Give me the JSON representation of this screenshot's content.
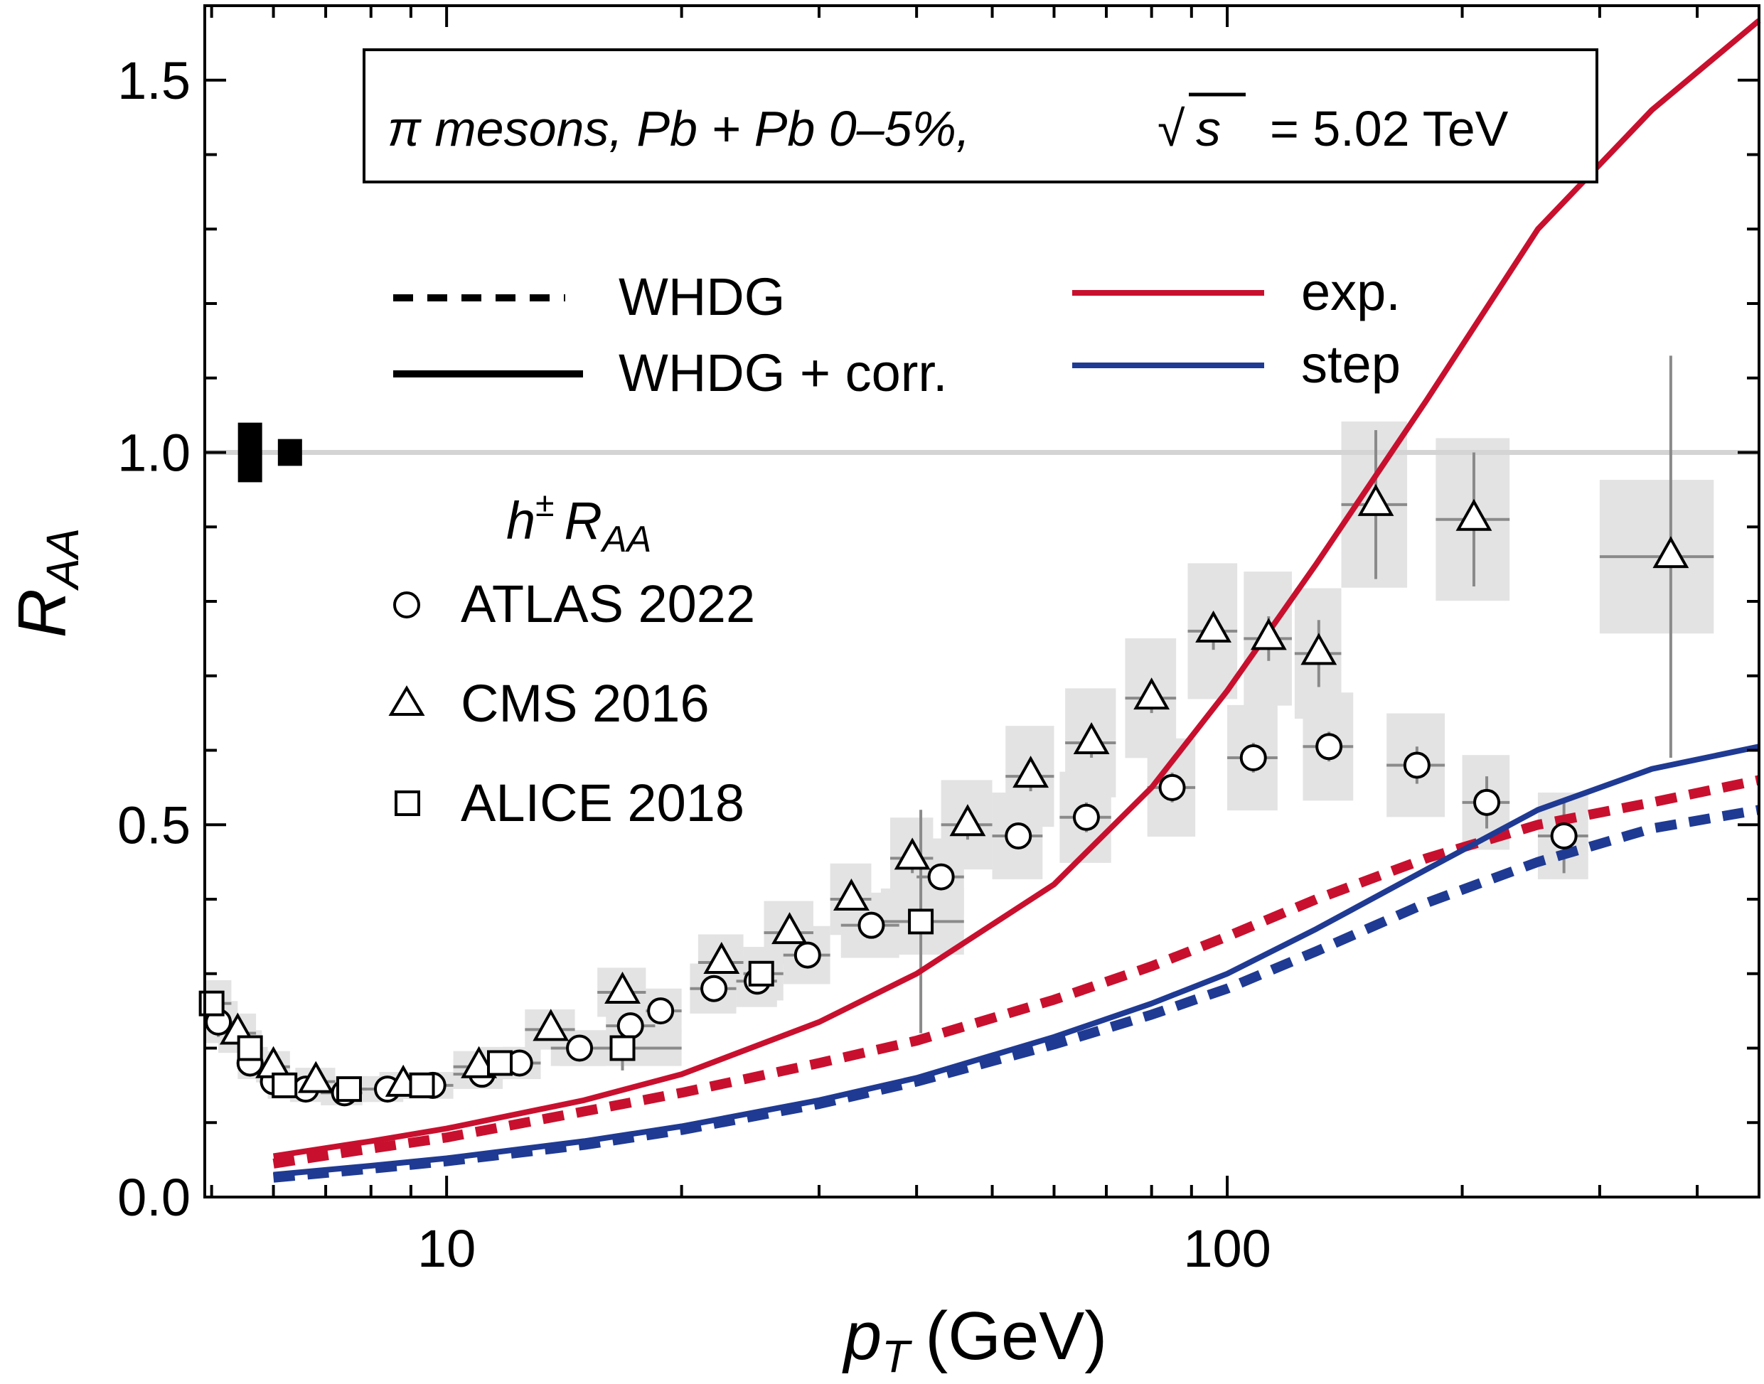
{
  "chart_data": {
    "type": "line",
    "x_scale": "log",
    "xlim": [
      4.9,
      480
    ],
    "ylim": [
      0.0,
      1.6
    ],
    "grid": false,
    "reference_line_y": 1.0,
    "xlabel_main": "p",
    "xlabel_sub": "T",
    "xlabel_unit": "(GeV)",
    "ylabel_main": "R",
    "ylabel_sub": "AA",
    "x_tick_labels": [
      {
        "v": 10,
        "text": "10"
      },
      {
        "v": 100,
        "text": "100"
      }
    ],
    "y_tick_labels": [
      {
        "v": 0.0,
        "text": "0.0"
      },
      {
        "v": 0.5,
        "text": "0.5"
      },
      {
        "v": 1.0,
        "text": "1.0"
      },
      {
        "v": 1.5,
        "text": "1.5"
      }
    ],
    "annotation": {
      "prefix": "π mesons, Pb + Pb 0–5%,",
      "sqrt_symbol": "√",
      "sqrt_arg": "s",
      "suffix": "= 5.02 TeV"
    },
    "legend_styles": [
      {
        "name": "WHDG",
        "dash": true
      },
      {
        "name": "WHDG + corr.",
        "dash": false
      }
    ],
    "legend_colors": [
      {
        "name": "exp.",
        "color": "#c8102e"
      },
      {
        "name": "step",
        "color": "#1f3a93"
      }
    ],
    "legend_data_title": {
      "main": "h",
      "sup": "±",
      "r": "R",
      "sub": "AA"
    },
    "legend_markers": [
      {
        "name": "ATLAS 2022",
        "marker": "circle"
      },
      {
        "name": "CMS 2016",
        "marker": "triangle"
      },
      {
        "name": "ALICE 2018",
        "marker": "square"
      }
    ],
    "normalization_boxes": [
      {
        "x": 5.6,
        "y": 1.0,
        "half_height": 0.04
      },
      {
        "x": 6.3,
        "y": 1.0,
        "half_height": 0.018
      }
    ],
    "series": [
      {
        "name": "exp. WHDG + corr.",
        "color": "#c8102e",
        "dash": false,
        "x": [
          6,
          8,
          10,
          15,
          20,
          30,
          40,
          60,
          80,
          100,
          130,
          180,
          250,
          350,
          480
        ],
        "y": [
          0.055,
          0.075,
          0.092,
          0.13,
          0.165,
          0.235,
          0.3,
          0.42,
          0.55,
          0.68,
          0.85,
          1.07,
          1.3,
          1.46,
          1.58
        ]
      },
      {
        "name": "exp. WHDG",
        "color": "#c8102e",
        "dash": true,
        "x": [
          6,
          8,
          10,
          15,
          20,
          30,
          40,
          60,
          80,
          100,
          130,
          180,
          250,
          350,
          480
        ],
        "y": [
          0.045,
          0.065,
          0.08,
          0.115,
          0.14,
          0.18,
          0.21,
          0.265,
          0.31,
          0.35,
          0.4,
          0.455,
          0.5,
          0.53,
          0.56
        ]
      },
      {
        "name": "step WHDG + corr.",
        "color": "#1f3a93",
        "dash": false,
        "x": [
          6,
          8,
          10,
          15,
          20,
          30,
          40,
          60,
          80,
          100,
          130,
          180,
          250,
          350,
          480
        ],
        "y": [
          0.03,
          0.042,
          0.052,
          0.075,
          0.095,
          0.13,
          0.16,
          0.215,
          0.26,
          0.3,
          0.36,
          0.44,
          0.52,
          0.575,
          0.605
        ]
      },
      {
        "name": "step WHDG",
        "color": "#1f3a93",
        "dash": true,
        "x": [
          6,
          8,
          10,
          15,
          20,
          30,
          40,
          60,
          80,
          100,
          130,
          180,
          250,
          350,
          480
        ],
        "y": [
          0.026,
          0.038,
          0.048,
          0.07,
          0.09,
          0.125,
          0.155,
          0.205,
          0.245,
          0.28,
          0.33,
          0.395,
          0.45,
          0.495,
          0.52
        ]
      }
    ],
    "data_points": [
      {
        "name": "ATLAS 2022",
        "marker": "circle",
        "points": [
          {
            "x": 5.1,
            "y": 0.235,
            "xl": 4.9,
            "xh": 5.4,
            "dy": 0.02,
            "bx": 0.12
          },
          {
            "x": 5.6,
            "y": 0.18,
            "xl": 5.4,
            "xh": 5.9,
            "dy": 0.015,
            "bx": 0.12
          },
          {
            "x": 6.0,
            "y": 0.155,
            "xl": 5.9,
            "xh": 6.3,
            "dy": 0.01,
            "bx": 0.12
          },
          {
            "x": 6.6,
            "y": 0.145,
            "xl": 6.3,
            "xh": 6.9,
            "dy": 0.01,
            "bx": 0.12
          },
          {
            "x": 7.4,
            "y": 0.14,
            "xl": 6.9,
            "xh": 7.8,
            "dy": 0.01,
            "bx": 0.12
          },
          {
            "x": 8.4,
            "y": 0.145,
            "xl": 7.8,
            "xh": 8.8,
            "dy": 0.01,
            "bx": 0.12
          },
          {
            "x": 9.6,
            "y": 0.15,
            "xl": 8.8,
            "xh": 10.2,
            "dy": 0.01,
            "bx": 0.12
          },
          {
            "x": 11.1,
            "y": 0.165,
            "xl": 10.2,
            "xh": 11.8,
            "dy": 0.01,
            "bx": 0.12
          },
          {
            "x": 12.4,
            "y": 0.18,
            "xl": 11.8,
            "xh": 13.2,
            "dy": 0.01,
            "bx": 0.12
          },
          {
            "x": 14.8,
            "y": 0.2,
            "xl": 13.6,
            "xh": 16.0,
            "dy": 0.01,
            "bx": 0.12
          },
          {
            "x": 17.2,
            "y": 0.23,
            "xl": 16.0,
            "xh": 18.5,
            "dy": 0.01,
            "bx": 0.12
          },
          {
            "x": 18.8,
            "y": 0.25,
            "xl": 18.0,
            "xh": 20.0,
            "dy": 0.01,
            "bx": 0.12
          },
          {
            "x": 22.0,
            "y": 0.28,
            "xl": 20.5,
            "xh": 23.5,
            "dy": 0.01,
            "bx": 0.12
          },
          {
            "x": 25.0,
            "y": 0.29,
            "xl": 23.5,
            "xh": 26.5,
            "dy": 0.01,
            "bx": 0.12
          },
          {
            "x": 29.0,
            "y": 0.325,
            "xl": 27.0,
            "xh": 31.0,
            "dy": 0.01,
            "bx": 0.12
          },
          {
            "x": 35.0,
            "y": 0.365,
            "xl": 32.0,
            "xh": 38.0,
            "dy": 0.01,
            "bx": 0.12
          },
          {
            "x": 43.0,
            "y": 0.43,
            "xl": 40.0,
            "xh": 46.0,
            "dy": 0.015,
            "bx": 0.12
          },
          {
            "x": 54.0,
            "y": 0.485,
            "xl": 50.0,
            "xh": 58.0,
            "dy": 0.015,
            "bx": 0.12
          },
          {
            "x": 66.0,
            "y": 0.51,
            "xl": 61.0,
            "xh": 71.0,
            "dy": 0.02,
            "bx": 0.12
          },
          {
            "x": 85.0,
            "y": 0.55,
            "xl": 79.0,
            "xh": 91.0,
            "dy": 0.02,
            "bx": 0.12
          },
          {
            "x": 108.0,
            "y": 0.59,
            "xl": 100.0,
            "xh": 116.0,
            "dy": 0.02,
            "bx": 0.12
          },
          {
            "x": 135.0,
            "y": 0.605,
            "xl": 125.0,
            "xh": 145.0,
            "dy": 0.02,
            "bx": 0.12
          },
          {
            "x": 175.0,
            "y": 0.58,
            "xl": 160.0,
            "xh": 190.0,
            "dy": 0.025,
            "bx": 0.12
          },
          {
            "x": 215.0,
            "y": 0.53,
            "xl": 200.0,
            "xh": 230.0,
            "dy": 0.035,
            "bx": 0.12
          },
          {
            "x": 270.0,
            "y": 0.485,
            "xl": 250.0,
            "xh": 290.0,
            "dy": 0.05,
            "bx": 0.12
          }
        ]
      },
      {
        "name": "CMS 2016",
        "marker": "triangle",
        "points": [
          {
            "x": 5.4,
            "y": 0.22,
            "xl": 5.1,
            "xh": 5.7,
            "dy": 0.015,
            "bx": 0.12
          },
          {
            "x": 6.0,
            "y": 0.175,
            "xl": 5.7,
            "xh": 6.3,
            "dy": 0.01,
            "bx": 0.12
          },
          {
            "x": 6.8,
            "y": 0.155,
            "xl": 6.4,
            "xh": 7.2,
            "dy": 0.01,
            "bx": 0.12
          },
          {
            "x": 8.8,
            "y": 0.15,
            "xl": 8.2,
            "xh": 9.4,
            "dy": 0.01,
            "bx": 0.12
          },
          {
            "x": 11.0,
            "y": 0.175,
            "xl": 10.2,
            "xh": 11.8,
            "dy": 0.01,
            "bx": 0.12
          },
          {
            "x": 13.6,
            "y": 0.225,
            "xl": 12.6,
            "xh": 14.6,
            "dy": 0.01,
            "bx": 0.12
          },
          {
            "x": 16.8,
            "y": 0.275,
            "xl": 15.6,
            "xh": 18.0,
            "dy": 0.01,
            "bx": 0.12
          },
          {
            "x": 22.5,
            "y": 0.315,
            "xl": 21.0,
            "xh": 24.0,
            "dy": 0.01,
            "bx": 0.12
          },
          {
            "x": 27.5,
            "y": 0.355,
            "xl": 25.5,
            "xh": 29.5,
            "dy": 0.015,
            "bx": 0.12
          },
          {
            "x": 33.0,
            "y": 0.4,
            "xl": 31.0,
            "xh": 35.0,
            "dy": 0.015,
            "bx": 0.12
          },
          {
            "x": 39.5,
            "y": 0.455,
            "xl": 37.0,
            "xh": 42.0,
            "dy": 0.02,
            "bx": 0.12
          },
          {
            "x": 46.5,
            "y": 0.5,
            "xl": 43.0,
            "xh": 50.0,
            "dy": 0.02,
            "bx": 0.12
          },
          {
            "x": 56.0,
            "y": 0.565,
            "xl": 52.0,
            "xh": 60.0,
            "dy": 0.02,
            "bx": 0.12
          },
          {
            "x": 67.0,
            "y": 0.61,
            "xl": 62.0,
            "xh": 72.0,
            "dy": 0.02,
            "bx": 0.12
          },
          {
            "x": 80.0,
            "y": 0.67,
            "xl": 74.0,
            "xh": 86.0,
            "dy": 0.02,
            "bx": 0.12
          },
          {
            "x": 96.0,
            "y": 0.76,
            "xl": 89.0,
            "xh": 103.0,
            "dy": 0.025,
            "bx": 0.12
          },
          {
            "x": 113.0,
            "y": 0.75,
            "xl": 105.0,
            "xh": 121.0,
            "dy": 0.03,
            "bx": 0.12
          },
          {
            "x": 131.0,
            "y": 0.73,
            "xl": 122.0,
            "xh": 140.0,
            "dy": 0.045,
            "bx": 0.12
          },
          {
            "x": 155.0,
            "y": 0.93,
            "xl": 140.0,
            "xh": 170.0,
            "dy": 0.1,
            "bx": 0.12
          },
          {
            "x": 207.0,
            "y": 0.91,
            "xl": 185.0,
            "xh": 230.0,
            "dy": 0.09,
            "bx": 0.12
          },
          {
            "x": 370.0,
            "y": 0.86,
            "xl": 300.0,
            "xh": 420.0,
            "dy": 0.27,
            "bx": 0.12
          }
        ]
      },
      {
        "name": "ALICE 2018",
        "marker": "square",
        "points": [
          {
            "x": 5.0,
            "y": 0.26,
            "xl": 4.9,
            "xh": 5.3,
            "dy": 0.015,
            "bx": 0.12
          },
          {
            "x": 5.6,
            "y": 0.2,
            "xl": 5.4,
            "xh": 5.8,
            "dy": 0.01,
            "bx": 0.12
          },
          {
            "x": 6.2,
            "y": 0.15,
            "xl": 5.9,
            "xh": 6.5,
            "dy": 0.01,
            "bx": 0.12
          },
          {
            "x": 7.5,
            "y": 0.145,
            "xl": 7.1,
            "xh": 7.9,
            "dy": 0.01,
            "bx": 0.12
          },
          {
            "x": 9.3,
            "y": 0.15,
            "xl": 8.8,
            "xh": 9.8,
            "dy": 0.01,
            "bx": 0.12
          },
          {
            "x": 11.7,
            "y": 0.18,
            "xl": 11.0,
            "xh": 12.4,
            "dy": 0.01,
            "bx": 0.12
          },
          {
            "x": 16.8,
            "y": 0.2,
            "xl": 14.0,
            "xh": 20.0,
            "dy": 0.03,
            "bx": 0.12
          },
          {
            "x": 25.3,
            "y": 0.3,
            "xl": 24.0,
            "xh": 27.0,
            "dy": 0.015,
            "bx": 0.12
          },
          {
            "x": 40.5,
            "y": 0.37,
            "xl": 36.0,
            "xh": 46.0,
            "dy": 0.15,
            "bx": 0.12
          }
        ]
      }
    ]
  }
}
